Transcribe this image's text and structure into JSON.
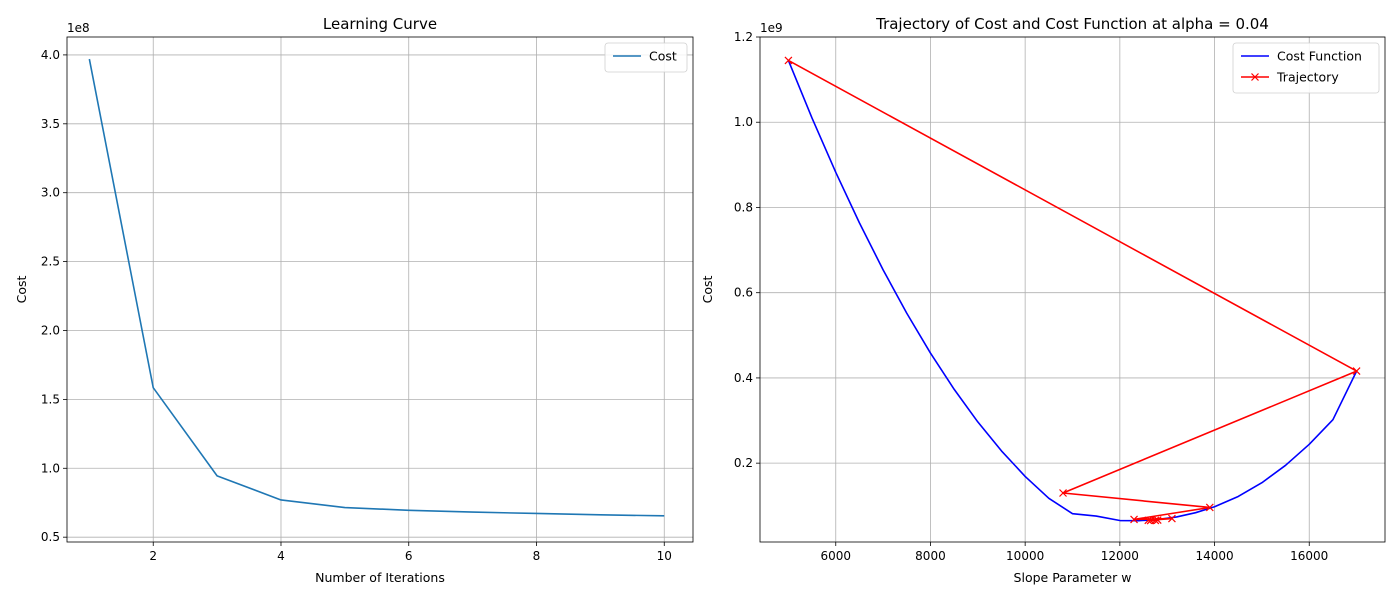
{
  "chart_data": [
    {
      "type": "line",
      "title": "Learning Curve",
      "xlabel": "Number of Iterations",
      "ylabel": "Cost",
      "y_offset_text": "1e8",
      "xlim": [
        0.65,
        10.45
      ],
      "ylim": [
        46500000.0,
        413000000.0
      ],
      "xticks": [
        2,
        4,
        6,
        8,
        10
      ],
      "xtick_labels": [
        "2",
        "4",
        "6",
        "8",
        "10"
      ],
      "yticks": [
        50000000.0,
        100000000.0,
        150000000.0,
        200000000.0,
        250000000.0,
        300000000.0,
        350000000.0,
        400000000.0
      ],
      "ytick_labels": [
        "0.5",
        "1.0",
        "1.5",
        "2.0",
        "2.5",
        "3.0",
        "3.5",
        "4.0"
      ],
      "grid": true,
      "legend_position": "top-right",
      "series": [
        {
          "name": "Cost",
          "color": "#1f77b4",
          "x": [
            1,
            2,
            3,
            4,
            5,
            6,
            7,
            8,
            9,
            10
          ],
          "y": [
            397000000.0,
            158500000.0,
            94500000.0,
            77000000.0,
            71500000.0,
            69500000.0,
            68200000.0,
            67200000.0,
            66200000.0,
            65500000.0
          ]
        }
      ]
    },
    {
      "type": "line",
      "title": "Trajectory of Cost and Cost Function at alpha = 0.04",
      "xlabel": "Slope Parameter w",
      "ylabel": "Cost",
      "y_offset_text": "1e9",
      "xlim": [
        4400,
        17600
      ],
      "ylim": [
        15000000.0,
        1200000000.0
      ],
      "xticks": [
        6000,
        8000,
        10000,
        12000,
        14000,
        16000
      ],
      "xtick_labels": [
        "6000",
        "8000",
        "10000",
        "12000",
        "14000",
        "16000"
      ],
      "yticks": [
        200000000.0,
        400000000.0,
        600000000.0,
        800000000.0,
        1000000000.0,
        1200000000.0
      ],
      "ytick_labels": [
        "0.2",
        "0.4",
        "0.6",
        "0.8",
        "1.0",
        "1.2"
      ],
      "grid": true,
      "legend_position": "top-right",
      "series": [
        {
          "name": "Cost Function",
          "color": "#0000ff",
          "x": [
            5000,
            5500,
            6000,
            6500,
            7000,
            7500,
            8000,
            8500,
            9000,
            9500,
            10000,
            10500,
            11000,
            11500,
            12000,
            12400,
            12800,
            13200,
            13600,
            14000,
            14500,
            15000,
            15500,
            16000,
            16500,
            17000
          ],
          "y": [
            1145000000.0,
            1009500000.0,
            882500000.0,
            763800000.0,
            653600000.0,
            551800000.0,
            458400000.0,
            373400000.0,
            296800000.0,
            228700000.0,
            168900000.0,
            117600000.0,
            81400000.0,
            75900000.0,
            65400000.0,
            65000000.0,
            67600000.0,
            73800000.0,
            83800000.0,
            97800000.0,
            121800000.0,
            154100000.0,
            194900000.0,
            244200000.0,
            302000000.0,
            416000000.0
          ]
        },
        {
          "name": "Trajectory",
          "color": "#ff0000",
          "marker": "x",
          "x": [
            5000,
            17000,
            10800,
            13900,
            12300,
            13100,
            12600,
            12800,
            12650,
            12750
          ],
          "y": [
            1145000000.0,
            416000000.0,
            130000000.0,
            96000000.0,
            68000000.0,
            70000000.0,
            66000000.0,
            66500000.0,
            65200000.0,
            65500000.0
          ]
        }
      ]
    }
  ]
}
